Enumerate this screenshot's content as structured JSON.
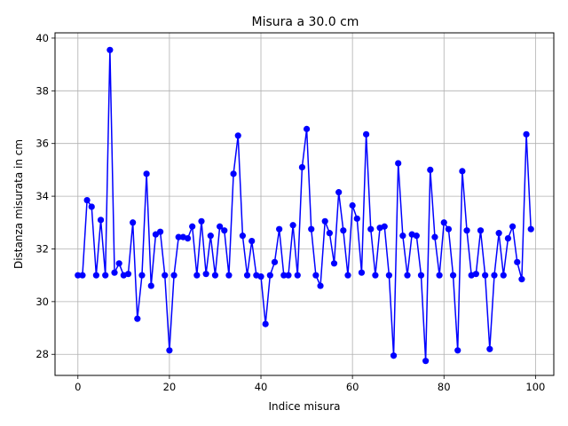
{
  "chart_data": {
    "type": "line",
    "title": "Misura a 30.0 cm",
    "xlabel": "Indice misura",
    "ylabel": "Distanza misurata in cm",
    "xlim": [
      -5,
      104
    ],
    "ylim": [
      27.2,
      40.2
    ],
    "xticks": [
      0,
      20,
      40,
      60,
      80,
      100
    ],
    "yticks": [
      28,
      30,
      32,
      34,
      36,
      38,
      40
    ],
    "grid": true,
    "series": [
      {
        "color": "#0000ff",
        "marker": "circle",
        "x": [
          0,
          1,
          2,
          3,
          4,
          5,
          6,
          7,
          8,
          9,
          10,
          11,
          12,
          13,
          14,
          15,
          16,
          17,
          18,
          19,
          20,
          21,
          22,
          23,
          24,
          25,
          26,
          27,
          28,
          29,
          30,
          31,
          32,
          33,
          34,
          35,
          36,
          37,
          38,
          39,
          40,
          41,
          42,
          43,
          44,
          45,
          46,
          47,
          48,
          49,
          50,
          51,
          52,
          53,
          54,
          55,
          56,
          57,
          58,
          59,
          60,
          61,
          62,
          63,
          64,
          65,
          66,
          67,
          68,
          69,
          70,
          71,
          72,
          73,
          74,
          75,
          76,
          77,
          78,
          79,
          80,
          81,
          82,
          83,
          84,
          85,
          86,
          87,
          88,
          89,
          90,
          91,
          92,
          93,
          94,
          95,
          96,
          97,
          98,
          99
        ],
        "values": [
          31.0,
          31.0,
          33.85,
          33.6,
          31.0,
          33.1,
          31.0,
          39.55,
          31.1,
          31.45,
          31.0,
          31.05,
          33.0,
          29.35,
          31.0,
          34.85,
          30.6,
          32.55,
          32.65,
          31.0,
          28.15,
          31.0,
          32.45,
          32.45,
          32.4,
          32.85,
          31.0,
          33.05,
          31.05,
          32.5,
          31.0,
          32.85,
          32.7,
          31.0,
          34.85,
          36.3,
          32.5,
          31.0,
          32.3,
          31.0,
          30.95,
          29.15,
          31.0,
          31.5,
          32.75,
          31.0,
          31.0,
          32.9,
          31.0,
          35.1,
          36.55,
          32.75,
          31.0,
          30.6,
          33.05,
          32.6,
          31.45,
          34.15,
          32.7,
          31.0,
          33.65,
          33.15,
          31.1,
          36.35,
          32.75,
          31.0,
          32.8,
          32.85,
          31.0,
          27.95,
          35.25,
          32.5,
          31.0,
          32.55,
          32.5,
          31.0,
          27.75,
          35.0,
          32.45,
          31.0,
          33.0,
          32.75,
          31.0,
          28.15,
          34.95,
          32.7,
          31.0,
          31.05,
          32.7,
          31.0,
          28.2,
          31.0,
          32.6,
          31.0,
          32.4,
          32.85,
          31.5,
          30.85,
          36.35,
          32.75
        ]
      }
    ]
  }
}
